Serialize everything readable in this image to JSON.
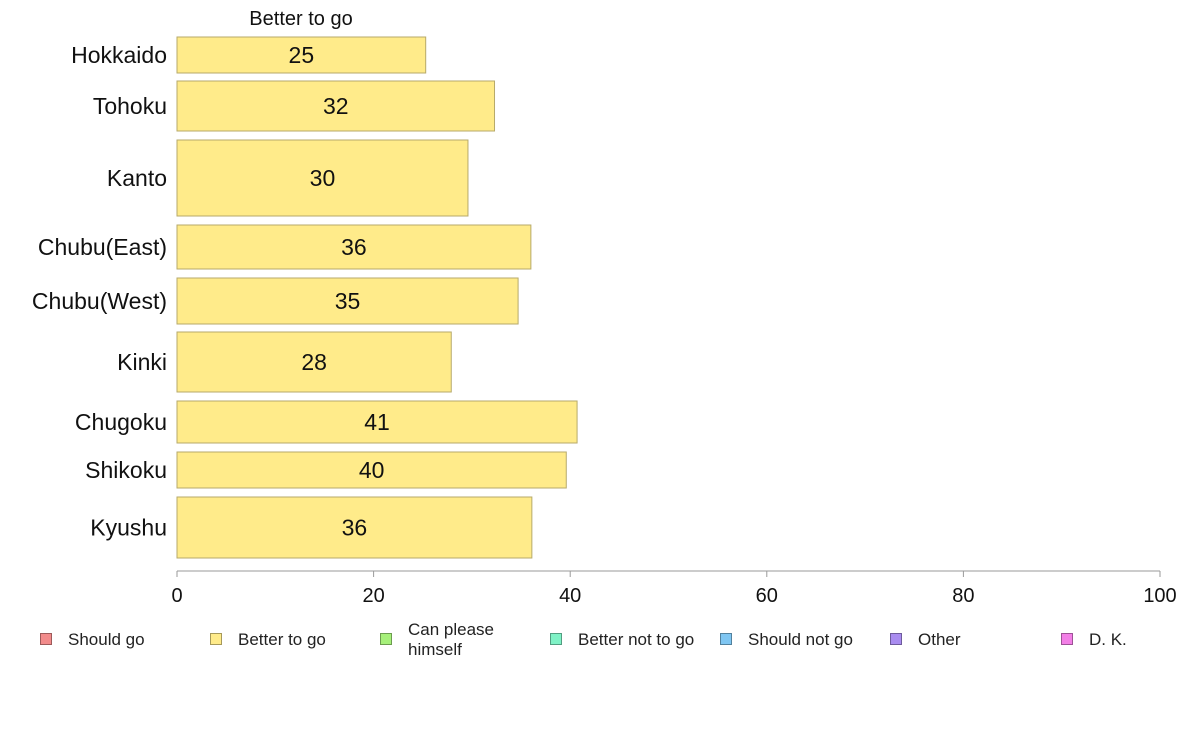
{
  "chart_data": {
    "type": "bar",
    "orientation": "horizontal",
    "title": "Better to go",
    "categories": [
      "Hokkaido",
      "Tohoku",
      "Kanto",
      "Chubu(East)",
      "Chubu(West)",
      "Kinki",
      "Chugoku",
      "Shikoku",
      "Kyushu"
    ],
    "series": [
      {
        "name": "Better to go",
        "values": [
          25,
          32,
          30,
          36,
          35,
          28,
          41,
          40,
          36
        ],
        "value_labels": [
          "25",
          "32",
          "30",
          "36",
          "35",
          "28",
          "41",
          "40",
          "36"
        ]
      }
    ],
    "bar_values_precise": [
      25.3,
      32.3,
      29.6,
      36.0,
      34.7,
      27.9,
      40.7,
      39.6,
      36.1
    ],
    "xlim": [
      0,
      100
    ],
    "xticks": [
      "0",
      "20",
      "40",
      "60",
      "80",
      "100"
    ],
    "xlabel": "",
    "ylabel": "",
    "grid": false,
    "legend_position": "bottom",
    "legend": [
      {
        "label": "Should go",
        "color": "#f28b8b"
      },
      {
        "label": "Better to go",
        "color": "#ffeb8a"
      },
      {
        "label": "Can please himself",
        "color": "#a6f07a"
      },
      {
        "label": "Better not to go",
        "color": "#7ff2c6"
      },
      {
        "label": "Should not go",
        "color": "#7fc6f2"
      },
      {
        "label": "Other",
        "color": "#a98cf0"
      },
      {
        "label": "D. K.",
        "color": "#f27fe6"
      }
    ],
    "bar_color": "#ffeb8a"
  }
}
